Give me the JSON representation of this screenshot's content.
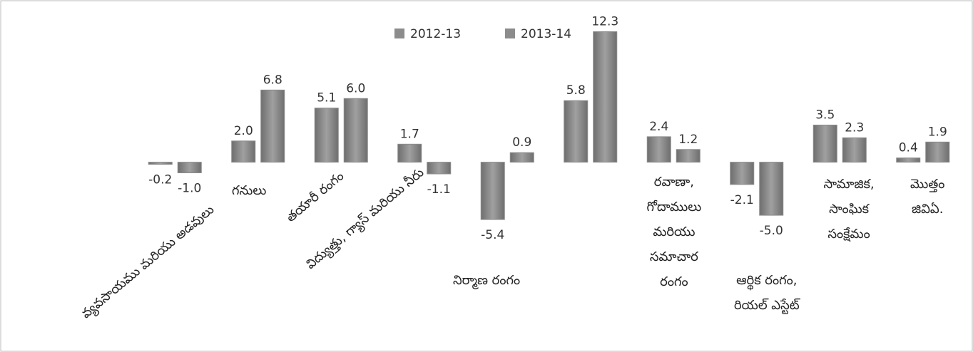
{
  "chart_data": {
    "type": "bar",
    "categories": [
      "వ్యవసాయము మరియు అడవులు",
      "గనులు",
      "తయారీ రంగం",
      "విద్యుత్తు, గ్యాస్ మరియు నీరు",
      "నిర్మాణ రంగం",
      null,
      "రవాణా,\nగోదాములు\nమరియు\nసమాచార\nరంగం",
      "ఆర్థిక రంగం,\nరియల్ ఎస్టేట్",
      "సామాజిక,\nసాంఘిక\nసంక్షేమం",
      "మొత్తం\nజివిఏ."
    ],
    "series": [
      {
        "name": "2012-13",
        "color": "#8c8c8c",
        "values": [
          -0.2,
          2.0,
          5.1,
          1.7,
          -5.4,
          5.8,
          2.4,
          -2.1,
          3.5,
          0.4
        ],
        "value_labels": [
          "-0.2",
          "2.0",
          "5.1",
          "1.7",
          "-5.4",
          "5.8",
          "2.4",
          "-2.1",
          "3.5",
          "0.4"
        ]
      },
      {
        "name": "2013-14",
        "color": "#8c8c8c",
        "values": [
          -1.0,
          6.8,
          6.0,
          -1.1,
          0.9,
          12.3,
          1.2,
          -5.0,
          2.3,
          1.9
        ],
        "value_labels": [
          "-1.0",
          "6.8",
          "6.0",
          "-1.1",
          "0.9",
          "12.3",
          "1.2",
          "-5.0",
          "2.3",
          "1.9"
        ]
      }
    ],
    "ylim": [
      -6,
      13
    ]
  }
}
